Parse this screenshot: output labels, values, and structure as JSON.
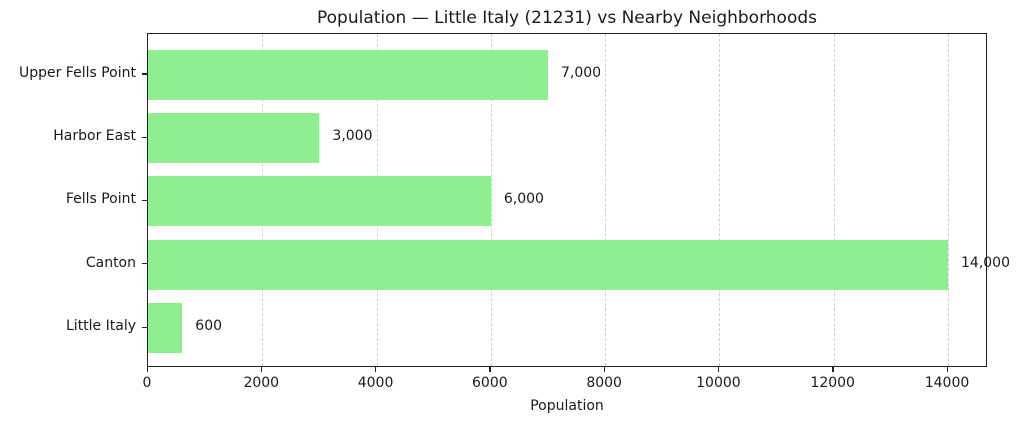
{
  "chart_data": {
    "type": "bar",
    "orientation": "horizontal",
    "title": "Population — Little Italy (21231) vs Nearby Neighborhoods",
    "xlabel": "Population",
    "ylabel": "",
    "categories": [
      "Little Italy",
      "Canton",
      "Fells Point",
      "Harbor East",
      "Upper Fells Point"
    ],
    "values": [
      600,
      14000,
      6000,
      3000,
      7000
    ],
    "value_labels": [
      "600",
      "14,000",
      "6,000",
      "3,000",
      "7,000"
    ],
    "xlim": [
      0,
      14700
    ],
    "xticks": [
      0,
      2000,
      4000,
      6000,
      8000,
      10000,
      12000,
      14000
    ],
    "xtick_labels": [
      "0",
      "2000",
      "4000",
      "6000",
      "8000",
      "10000",
      "12000",
      "14000"
    ],
    "grid": {
      "x": true,
      "y": false,
      "style": "dashed"
    },
    "bar_color": "#90ee90",
    "legend": null
  }
}
